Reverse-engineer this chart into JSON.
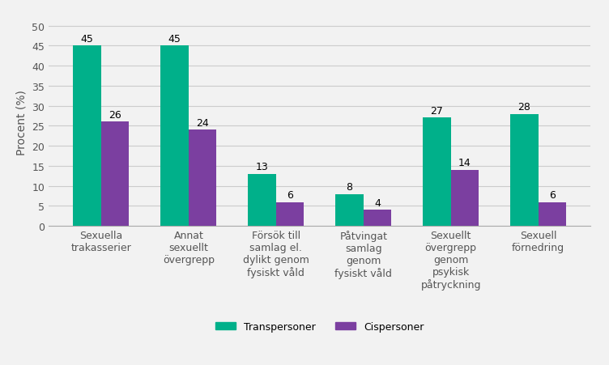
{
  "categories": [
    "Sexuella\ntrakasserier",
    "Annat\nsexuellt\növergrepp",
    "Försök till\nsamlag el.\ndylikt genom\nfysiskt våld",
    "Påtvingat\nsamlag\ngenom\nfysiskt våld",
    "Sexuellt\növergrepp\ngenom\npsykisk\npåtryckning",
    "Sexuell\nförnedring"
  ],
  "transpersoner": [
    45,
    45,
    13,
    8,
    27,
    28
  ],
  "cispersoner": [
    26,
    24,
    6,
    4,
    14,
    6
  ],
  "trans_color": "#00b08a",
  "cis_color": "#7b3fa0",
  "ylabel": "Procent (%)",
  "ylim": [
    0,
    52
  ],
  "yticks": [
    0,
    5,
    10,
    15,
    20,
    25,
    30,
    35,
    40,
    45,
    50
  ],
  "bar_width": 0.32,
  "legend_labels": [
    "Transpersoner",
    "Cispersoner"
  ],
  "background_color": "#f2f2f2",
  "plot_bg_color": "#ffffff",
  "label_fontsize": 9,
  "tick_fontsize": 9,
  "ylabel_fontsize": 10,
  "grid_color": "#cccccc"
}
